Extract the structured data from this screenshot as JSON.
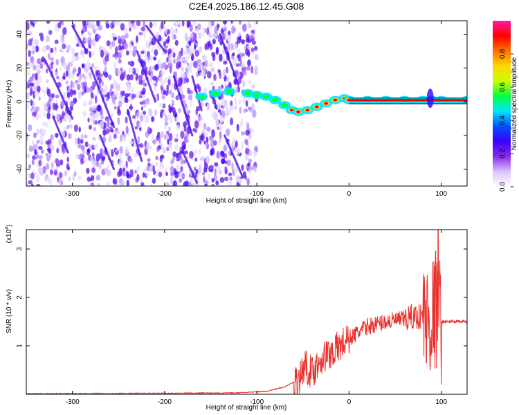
{
  "figure_title": "C2E4.2025.186.12.45.G08",
  "chart_data": [
    {
      "type": "heatmap",
      "title": "",
      "xlabel": "Height of straight line (km)",
      "ylabel": "Frequency (Hz)",
      "xlim": [
        -350,
        128
      ],
      "ylim": [
        -50,
        48
      ],
      "x_ticks": [
        -300,
        -200,
        -100,
        0,
        100
      ],
      "y_ticks": [
        -40,
        -20,
        0,
        20,
        40
      ],
      "colorbar": {
        "label": "Normalized spectral amplitude",
        "range": [
          0,
          1
        ],
        "ticks": [
          "0.0",
          "0.2",
          "0.4",
          "0.6",
          "0.8"
        ],
        "colormap": [
          "#ffffff",
          "#d9c4ff",
          "#8a2be2",
          "#3a00ff",
          "#0050ff",
          "#00e5ff",
          "#00ff40",
          "#c8ff00",
          "#ffd800",
          "#ff7000",
          "#ff0000",
          "#ff1aa0"
        ]
      },
      "noise_region_x": [
        -350,
        -100
      ],
      "signal_track": {
        "x": [
          -160,
          -145,
          -130,
          -110,
          -100,
          -90,
          -80,
          -70,
          -62,
          -55,
          -45,
          -35,
          -25,
          -15,
          -5,
          0,
          20,
          40,
          60,
          80,
          90,
          100,
          128
        ],
        "y": [
          3,
          5,
          6,
          5,
          4,
          3,
          1,
          -2,
          -5,
          -6,
          -5,
          -3,
          -1,
          1,
          2,
          1,
          1,
          1,
          1,
          1,
          1,
          1,
          1
        ]
      }
    },
    {
      "type": "line",
      "title": "",
      "xlabel": "Height of straight line (km)",
      "ylabel": "SNR (10 * v/v)",
      "y_multiplier": "(x10",
      "y_multiplier_exp": "4",
      "y_multiplier_close": ")",
      "xlim": [
        -350,
        128
      ],
      "ylim": [
        0,
        3.4
      ],
      "x_ticks": [
        -300,
        -200,
        -100,
        0,
        100
      ],
      "y_ticks": [
        1,
        2,
        3
      ],
      "line_color": "#e8302c",
      "series": [
        {
          "x": [
            -350,
            -200,
            -120,
            -90,
            -70,
            -55,
            -48,
            -40,
            -30,
            -20,
            -10,
            0,
            20,
            40,
            60,
            70,
            80,
            85,
            90,
            95,
            100,
            110,
            128
          ],
          "y": [
            0.01,
            0.02,
            0.03,
            0.06,
            0.15,
            0.3,
            0.6,
            0.45,
            0.75,
            0.85,
            1.0,
            1.15,
            1.4,
            1.5,
            1.55,
            1.6,
            1.62,
            1.5,
            1.6,
            1.8,
            1.5,
            1.5,
            1.5
          ]
        }
      ]
    }
  ]
}
